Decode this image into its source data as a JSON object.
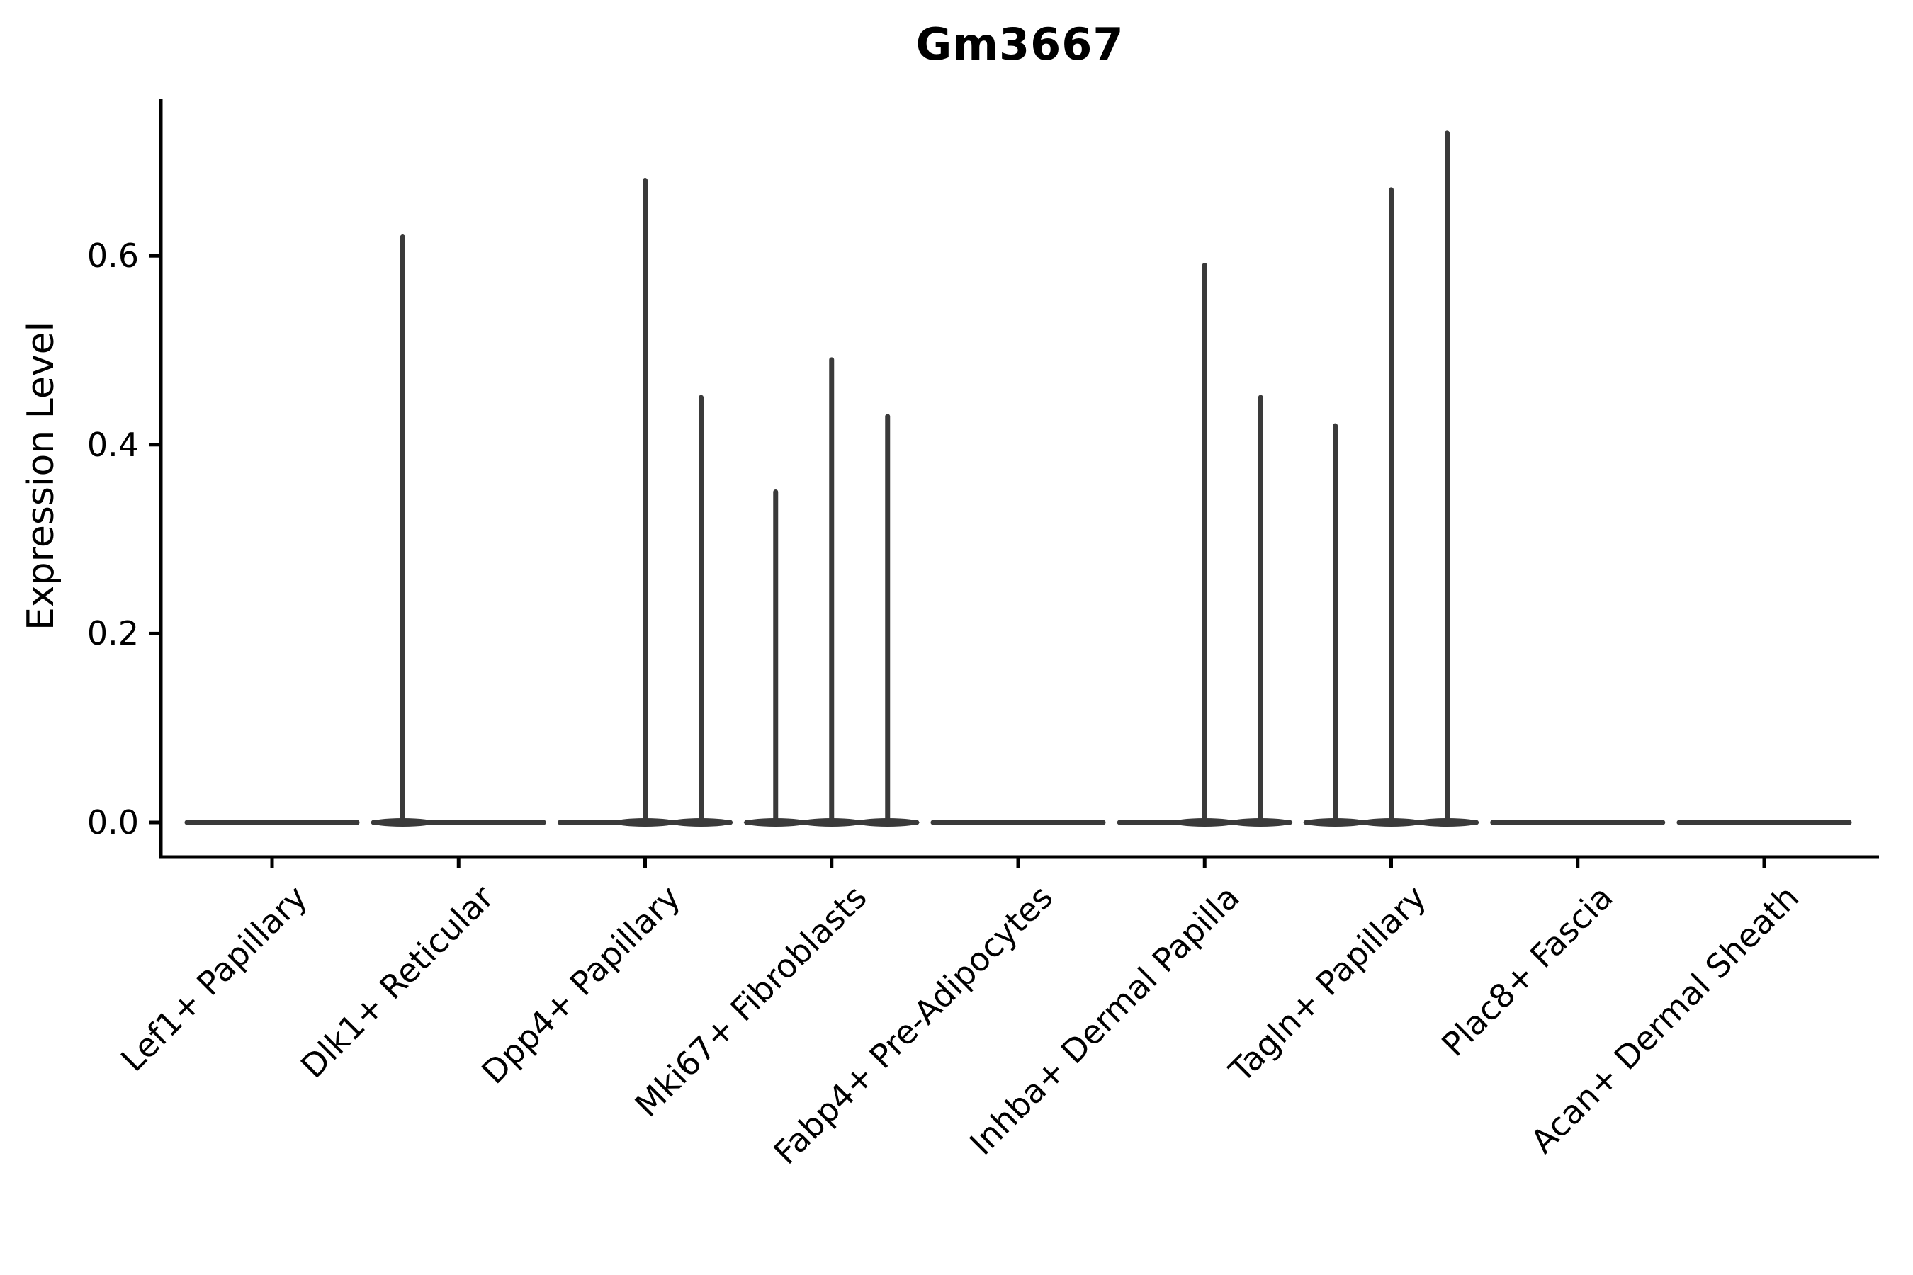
{
  "figure": {
    "title": "Gm3667",
    "y_axis_label": "Expression Level"
  },
  "chart_data": {
    "type": "violin",
    "title": "Gm3667",
    "xlabel": "",
    "ylabel": "Expression Level",
    "categories": [
      "Lef1+ Papillary",
      "Dlk1+ Reticular",
      "Dpp4+ Papillary",
      "Mki67+ Fibroblasts",
      "Fabp4+ Pre-Adipocytes",
      "Inhba+ Dermal Papilla",
      "Tagln+ Papillary",
      "Plac8+ Fascia",
      "Acan+ Dermal Sheath"
    ],
    "sub_violins_per_category": 3,
    "series": [
      {
        "category": "Lef1+ Papillary",
        "spike_heights": [
          0,
          0,
          0
        ]
      },
      {
        "category": "Dlk1+ Reticular",
        "spike_heights": [
          0.62,
          0,
          0
        ]
      },
      {
        "category": "Dpp4+ Papillary",
        "spike_heights": [
          0,
          0.68,
          0.45
        ]
      },
      {
        "category": "Mki67+ Fibroblasts",
        "spike_heights": [
          0.35,
          0.49,
          0.43
        ]
      },
      {
        "category": "Fabp4+ Pre-Adipocytes",
        "spike_heights": [
          0,
          0,
          0
        ]
      },
      {
        "category": "Inhba+ Dermal Papilla",
        "spike_heights": [
          0,
          0.59,
          0.45
        ]
      },
      {
        "category": "Tagln+ Papillary",
        "spike_heights": [
          0.42,
          0.67,
          0.73
        ]
      },
      {
        "category": "Plac8+ Fascia",
        "spike_heights": [
          0,
          0,
          0
        ]
      },
      {
        "category": "Acan+ Dermal Sheath",
        "spike_heights": [
          0,
          0,
          0
        ]
      }
    ],
    "yticks": [
      0.0,
      0.2,
      0.4,
      0.6
    ],
    "ytick_labels": [
      "0.0",
      "0.2",
      "0.4",
      "0.6"
    ],
    "ylim": [
      -0.04,
      0.77
    ],
    "grid": false,
    "legend_position": "none",
    "colors": {
      "violin_line": "#3a3a3a",
      "axis": "#000000",
      "text": "#000000",
      "background": "#ffffff"
    }
  }
}
